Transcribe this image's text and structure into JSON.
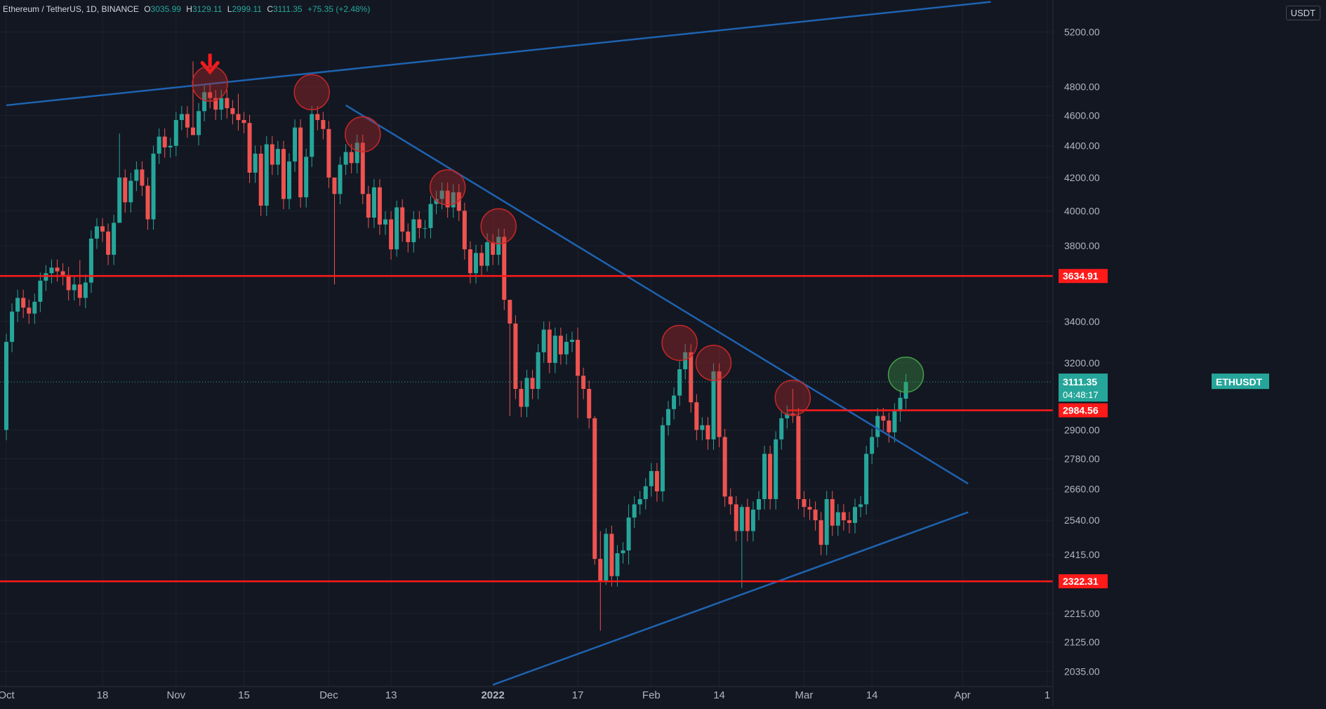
{
  "header": {
    "symbol_line": "Ethereum / TetherUS, 1D, BINANCE",
    "open_label": "O",
    "open": "3035.99",
    "high_label": "H",
    "high": "3129.11",
    "low_label": "L",
    "low": "2999.11",
    "close_label": "C",
    "close": "3111.35",
    "change": "+75.35 (+2.48%)",
    "currency_button": "USDT"
  },
  "colors": {
    "background": "#131722",
    "up": "#26a69a",
    "down": "#ef5350",
    "trendline": "#1e63b0",
    "level": "#ff1a1a",
    "grid": "#1e222d",
    "marker_red": "#c62828",
    "marker_green": "#43a047"
  },
  "chart_data": {
    "type": "candlestick",
    "title": "Ethereum / TetherUS, 1D, BINANCE",
    "x_ticks": [
      "Oct",
      "18",
      "Nov",
      "15",
      "Dec",
      "13",
      "2022",
      "17",
      "Feb",
      "14",
      "Mar",
      "14",
      "Apr",
      "1"
    ],
    "y_ticks": [
      "5200.00",
      "4800.00",
      "4600.00",
      "4400.00",
      "4200.00",
      "4000.00",
      "3800.00",
      "3400.00",
      "3200.00",
      "2900.00",
      "2780.00",
      "2660.00",
      "2540.00",
      "2415.00",
      "2215.00",
      "2125.00",
      "2035.00"
    ],
    "y_scale": "log",
    "ylim": [
      1990,
      5450
    ],
    "grid": true,
    "last_price": {
      "symbol": "ETHUSDT",
      "price": "3111.35",
      "countdown": "04:48:17"
    },
    "levels": [
      {
        "label": "3634.91",
        "price": 3634.91
      },
      {
        "label": "2984.56",
        "price": 2984.56
      },
      {
        "label": "2322.31",
        "price": 2322.31
      }
    ],
    "trendlines": [
      {
        "name": "upper-channel",
        "from": {
          "day": 0,
          "price": 4670
        },
        "to": {
          "day": 174,
          "price": 5435
        }
      },
      {
        "name": "descending-resistance",
        "from": {
          "day": 60,
          "price": 4670
        },
        "to": {
          "day": 170,
          "price": 2680
        }
      },
      {
        "name": "ascending-support",
        "from": {
          "day": 86,
          "price": 1995
        },
        "to": {
          "day": 170,
          "price": 2570
        }
      }
    ],
    "markers": [
      {
        "type": "arrow-down",
        "day": 36,
        "price": 4975
      },
      {
        "type": "circle",
        "color": "red",
        "day": 36,
        "price": 4820
      },
      {
        "type": "circle",
        "color": "red",
        "day": 54,
        "price": 4760
      },
      {
        "type": "circle",
        "color": "red",
        "day": 63,
        "price": 4475
      },
      {
        "type": "circle",
        "color": "red",
        "day": 78,
        "price": 4140
      },
      {
        "type": "circle",
        "color": "red",
        "day": 87,
        "price": 3910
      },
      {
        "type": "circle",
        "color": "red",
        "day": 119,
        "price": 3295
      },
      {
        "type": "circle",
        "color": "red",
        "day": 125,
        "price": 3200
      },
      {
        "type": "circle",
        "color": "red",
        "day": 139,
        "price": 3040
      },
      {
        "type": "circle",
        "color": "green",
        "day": 159,
        "price": 3145
      }
    ],
    "candles": [
      [
        0,
        2900,
        3300
      ],
      [
        1,
        3300,
        3450
      ],
      [
        2,
        3450,
        3520
      ],
      [
        3,
        3520,
        3470
      ],
      [
        4,
        3470,
        3440
      ],
      [
        5,
        3440,
        3500
      ],
      [
        6,
        3500,
        3610
      ],
      [
        7,
        3610,
        3650
      ],
      [
        8,
        3650,
        3680
      ],
      [
        9,
        3680,
        3660
      ],
      [
        10,
        3660,
        3640
      ],
      [
        11,
        3640,
        3560
      ],
      [
        12,
        3560,
        3590
      ],
      [
        13,
        3590,
        3520
      ],
      [
        14,
        3520,
        3600
      ],
      [
        15,
        3600,
        3840
      ],
      [
        16,
        3840,
        3910
      ],
      [
        17,
        3910,
        3880
      ],
      [
        18,
        3880,
        3750
      ],
      [
        19,
        3750,
        3930
      ],
      [
        20,
        3930,
        4200
      ],
      [
        21,
        4200,
        4050
      ],
      [
        22,
        4050,
        4180
      ],
      [
        23,
        4180,
        4250
      ],
      [
        24,
        4250,
        4150
      ],
      [
        25,
        4150,
        3950
      ],
      [
        26,
        3950,
        4350
      ],
      [
        27,
        4350,
        4460
      ],
      [
        28,
        4460,
        4390
      ],
      [
        29,
        4390,
        4400
      ],
      [
        30,
        4400,
        4570
      ],
      [
        31,
        4570,
        4610
      ],
      [
        32,
        4610,
        4520
      ],
      [
        33,
        4520,
        4470
      ],
      [
        34,
        4470,
        4630
      ],
      [
        35,
        4630,
        4760
      ],
      [
        36,
        4760,
        4720
      ],
      [
        37,
        4720,
        4640
      ],
      [
        38,
        4640,
        4720
      ],
      [
        39,
        4720,
        4650
      ],
      [
        40,
        4650,
        4610
      ],
      [
        41,
        4610,
        4570
      ],
      [
        42,
        4570,
        4550
      ],
      [
        43,
        4550,
        4230
      ],
      [
        44,
        4230,
        4350
      ],
      [
        45,
        4350,
        4030
      ],
      [
        46,
        4030,
        4410
      ],
      [
        47,
        4410,
        4280
      ],
      [
        48,
        4280,
        4380
      ],
      [
        49,
        4380,
        4070
      ],
      [
        50,
        4070,
        4300
      ],
      [
        51,
        4300,
        4520
      ],
      [
        52,
        4520,
        4080
      ],
      [
        53,
        4080,
        4330
      ],
      [
        54,
        4330,
        4610
      ],
      [
        55,
        4610,
        4570
      ],
      [
        56,
        4570,
        4510
      ],
      [
        57,
        4510,
        4200
      ],
      [
        58,
        4200,
        4100
      ],
      [
        59,
        4100,
        4280
      ],
      [
        60,
        4280,
        4360
      ],
      [
        61,
        4360,
        4290
      ],
      [
        62,
        4290,
        4420
      ],
      [
        63,
        4420,
        4100
      ],
      [
        64,
        4100,
        3960
      ],
      [
        65,
        3960,
        4140
      ],
      [
        66,
        4140,
        3920
      ],
      [
        67,
        3920,
        3950
      ],
      [
        68,
        3950,
        3780
      ],
      [
        69,
        3780,
        4020
      ],
      [
        70,
        4020,
        3880
      ],
      [
        71,
        3880,
        3820
      ],
      [
        72,
        3820,
        3950
      ],
      [
        73,
        3950,
        3900
      ],
      [
        74,
        3900,
        3900
      ],
      [
        75,
        3900,
        4040
      ],
      [
        76,
        4040,
        4070
      ],
      [
        77,
        4070,
        4120
      ],
      [
        78,
        4120,
        4020
      ],
      [
        79,
        4020,
        4110
      ],
      [
        80,
        4110,
        4000
      ],
      [
        81,
        4000,
        3780
      ],
      [
        82,
        3780,
        3650
      ],
      [
        83,
        3650,
        3760
      ],
      [
        84,
        3760,
        3690
      ],
      [
        85,
        3690,
        3820
      ],
      [
        86,
        3820,
        3750
      ],
      [
        87,
        3750,
        3850
      ],
      [
        88,
        3850,
        3510
      ],
      [
        89,
        3510,
        3390
      ],
      [
        90,
        3390,
        3080
      ],
      [
        91,
        3080,
        3000
      ],
      [
        92,
        3000,
        3130
      ],
      [
        93,
        3130,
        3080
      ],
      [
        94,
        3080,
        3250
      ],
      [
        95,
        3250,
        3360
      ],
      [
        96,
        3360,
        3200
      ],
      [
        97,
        3200,
        3330
      ],
      [
        98,
        3330,
        3240
      ],
      [
        99,
        3240,
        3300
      ],
      [
        100,
        3300,
        3310
      ],
      [
        101,
        3310,
        3140
      ],
      [
        102,
        3140,
        3080
      ],
      [
        103,
        3080,
        2950
      ],
      [
        104,
        2950,
        2400
      ],
      [
        105,
        2400,
        2320
      ],
      [
        106,
        2320,
        2490
      ],
      [
        107,
        2490,
        2340
      ],
      [
        108,
        2340,
        2420
      ],
      [
        109,
        2420,
        2430
      ],
      [
        110,
        2430,
        2550
      ],
      [
        111,
        2550,
        2600
      ],
      [
        112,
        2600,
        2620
      ],
      [
        113,
        2620,
        2670
      ],
      [
        114,
        2670,
        2730
      ],
      [
        115,
        2730,
        2650
      ],
      [
        116,
        2650,
        2920
      ],
      [
        117,
        2920,
        2990
      ],
      [
        118,
        2990,
        3050
      ],
      [
        119,
        3050,
        3170
      ],
      [
        120,
        3170,
        3250
      ],
      [
        121,
        3250,
        3020
      ],
      [
        122,
        3020,
        2900
      ],
      [
        123,
        2900,
        2920
      ],
      [
        124,
        2920,
        2860
      ],
      [
        125,
        2860,
        3160
      ],
      [
        126,
        3160,
        2870
      ],
      [
        127,
        2870,
        2630
      ],
      [
        128,
        2630,
        2600
      ],
      [
        129,
        2600,
        2500
      ],
      [
        130,
        2500,
        2590
      ],
      [
        131,
        2590,
        2500
      ],
      [
        132,
        2500,
        2580
      ],
      [
        133,
        2580,
        2620
      ],
      [
        134,
        2620,
        2800
      ],
      [
        135,
        2800,
        2620
      ],
      [
        136,
        2620,
        2860
      ],
      [
        137,
        2860,
        2950
      ],
      [
        138,
        2950,
        2970
      ],
      [
        139,
        2970,
        2960
      ],
      [
        140,
        2960,
        2620
      ],
      [
        141,
        2620,
        2590
      ],
      [
        142,
        2590,
        2580
      ],
      [
        143,
        2580,
        2540
      ],
      [
        144,
        2540,
        2450
      ],
      [
        145,
        2450,
        2620
      ],
      [
        146,
        2620,
        2520
      ],
      [
        147,
        2520,
        2570
      ],
      [
        148,
        2570,
        2540
      ],
      [
        149,
        2540,
        2530
      ],
      [
        150,
        2530,
        2590
      ],
      [
        151,
        2590,
        2600
      ],
      [
        152,
        2600,
        2800
      ],
      [
        153,
        2800,
        2870
      ],
      [
        154,
        2870,
        2960
      ],
      [
        155,
        2960,
        2940
      ],
      [
        156,
        2940,
        2890
      ],
      [
        157,
        2890,
        2980
      ],
      [
        158,
        2980,
        3040
      ],
      [
        159,
        3036,
        3111
      ]
    ],
    "wicks": {
      "13": [
        3480,
        3720
      ],
      "20": [
        3950,
        4480
      ],
      "33": [
        4470,
        4980
      ],
      "41": [
        4500,
        4750
      ],
      "58": [
        3590,
        4160
      ],
      "69": [
        3740,
        4060
      ],
      "85": [
        3660,
        3870
      ],
      "89": [
        2960,
        3500
      ],
      "101": [
        2950,
        3370
      ],
      "104": [
        2380,
        2960
      ],
      "105": [
        2160,
        2500
      ],
      "106": [
        2310,
        2510
      ],
      "110": [
        2380,
        2600
      ],
      "130": [
        2300,
        2600
      ],
      "139": [
        2930,
        3080
      ]
    }
  }
}
